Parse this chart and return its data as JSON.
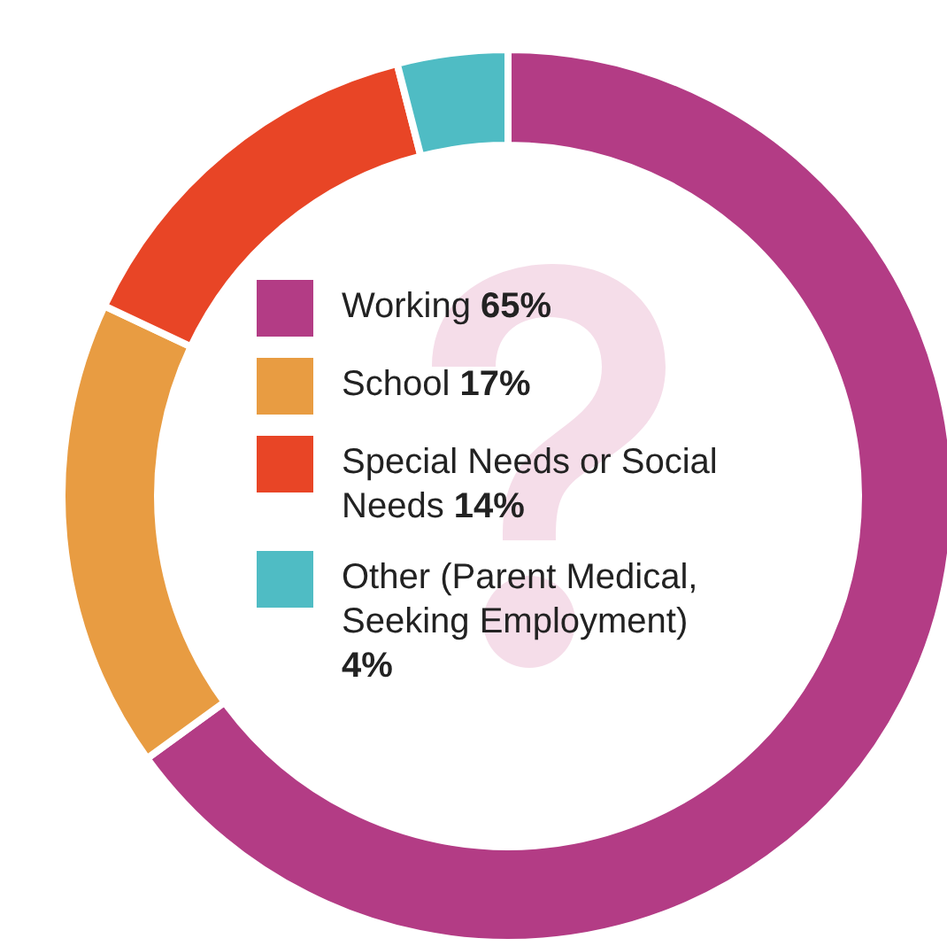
{
  "chart_data": {
    "type": "donut",
    "categories": [
      "Working",
      "School",
      "Special Needs or Social Needs",
      "Other (Parent Medical, Seeking Employment)"
    ],
    "values": [
      65,
      17,
      14,
      4
    ],
    "value_labels": [
      "65%",
      "17%",
      "14%",
      "4%"
    ],
    "colors": [
      "#b33c85",
      "#e89c42",
      "#e84526",
      "#4fbcc4"
    ],
    "legend": "center"
  }
}
